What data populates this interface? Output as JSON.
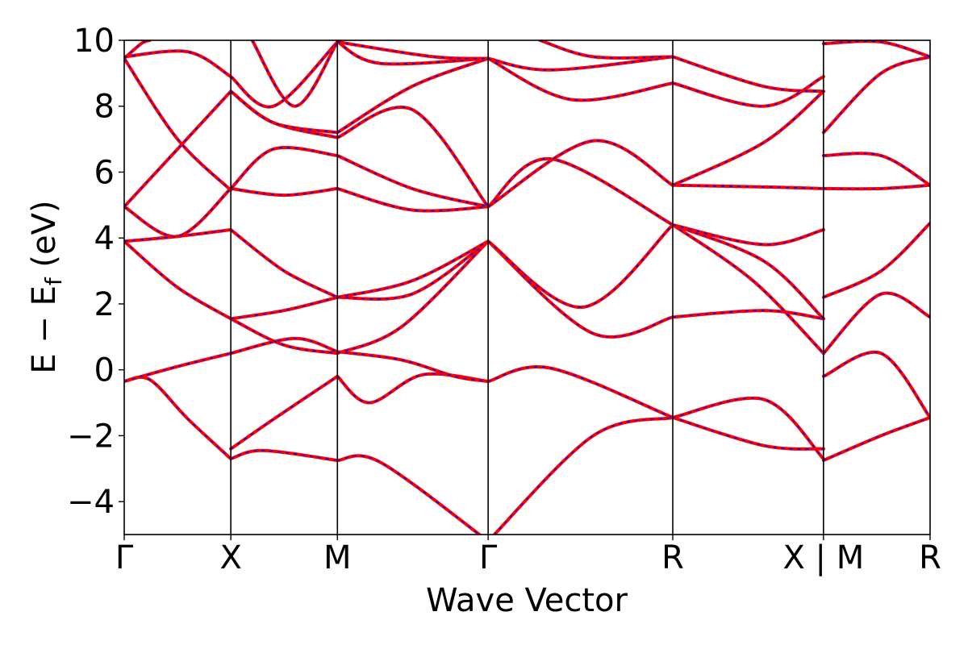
{
  "chart_data": {
    "type": "line",
    "xlabel": "Wave Vector",
    "ylabel": "E − E_f (eV)",
    "ylabel_main": "E − E",
    "ylabel_sub": "f",
    "ylabel_tail": " (eV)",
    "ylim": [
      -5,
      10
    ],
    "yticks": [
      -4,
      -2,
      0,
      2,
      4,
      6,
      8,
      10
    ],
    "yticklabels": [
      "−4",
      "−2",
      "0",
      "2",
      "4",
      "6",
      "8",
      "10"
    ],
    "kpath": [
      {
        "label": "Γ",
        "x": 0.0
      },
      {
        "label": "X",
        "x": 0.5
      },
      {
        "label": "M",
        "x": 1.0
      },
      {
        "label": "Γ",
        "x": 1.707
      },
      {
        "label": "R",
        "x": 2.573
      },
      {
        "label": "X | M",
        "x": 3.28
      },
      {
        "label": "R",
        "x": 3.78
      }
    ],
    "xlim": [
      0,
      3.78
    ],
    "colors": {
      "primary": "#ff0000",
      "secondary": "#0000ff"
    },
    "segments": [
      {
        "name": "Γ-X",
        "bands": [
          [
            [
              0,
              -5.3
            ],
            [
              0.15,
              -5.05
            ]
          ],
          [
            [
              0,
              -0.35
            ],
            [
              0.12,
              -0.3
            ],
            [
              0.3,
              -1.5
            ],
            [
              0.5,
              -2.7
            ]
          ],
          [
            [
              0,
              -0.35
            ],
            [
              0.25,
              0.1
            ],
            [
              0.5,
              0.5
            ]
          ],
          [
            [
              0,
              3.9
            ],
            [
              0.25,
              2.5
            ],
            [
              0.5,
              1.55
            ]
          ],
          [
            [
              0,
              3.9
            ],
            [
              0.25,
              4.05
            ],
            [
              0.5,
              4.25
            ]
          ],
          [
            [
              0,
              4.95
            ],
            [
              0.25,
              4.05
            ],
            [
              0.5,
              5.5
            ]
          ],
          [
            [
              0,
              4.95
            ],
            [
              0.25,
              6.7
            ],
            [
              0.5,
              8.45
            ]
          ],
          [
            [
              0,
              9.45
            ],
            [
              0.25,
              7.0
            ],
            [
              0.5,
              5.45
            ]
          ],
          [
            [
              0,
              9.5
            ],
            [
              0.3,
              9.65
            ],
            [
              0.5,
              8.9
            ]
          ],
          [
            [
              0,
              9.45
            ],
            [
              0.08,
              9.9
            ],
            [
              0.12,
              10.0
            ]
          ]
        ]
      },
      {
        "name": "X-M",
        "bands": [
          [
            [
              0.5,
              -2.7
            ],
            [
              0.65,
              -2.45
            ],
            [
              1.0,
              -2.75
            ]
          ],
          [
            [
              0.5,
              -2.4
            ],
            [
              0.7,
              -1.5
            ],
            [
              1.0,
              -0.2
            ]
          ],
          [
            [
              0.5,
              0.5
            ],
            [
              0.8,
              0.95
            ],
            [
              1.0,
              0.55
            ]
          ],
          [
            [
              0.5,
              1.55
            ],
            [
              0.75,
              0.75
            ],
            [
              1.0,
              0.5
            ]
          ],
          [
            [
              0.5,
              1.55
            ],
            [
              0.75,
              1.8
            ],
            [
              1.0,
              2.2
            ]
          ],
          [
            [
              0.5,
              4.25
            ],
            [
              0.75,
              3.0
            ],
            [
              1.0,
              2.2
            ]
          ],
          [
            [
              0.5,
              5.5
            ],
            [
              0.75,
              5.3
            ],
            [
              1.0,
              5.5
            ]
          ],
          [
            [
              0.5,
              5.5
            ],
            [
              0.7,
              6.7
            ],
            [
              1.0,
              6.5
            ]
          ],
          [
            [
              0.5,
              8.45
            ],
            [
              0.7,
              7.5
            ],
            [
              1.0,
              7.05
            ]
          ],
          [
            [
              0.5,
              8.45
            ],
            [
              0.7,
              7.5
            ],
            [
              1.0,
              7.2
            ]
          ],
          [
            [
              0.5,
              8.9
            ],
            [
              0.7,
              8.0
            ],
            [
              1.0,
              9.95
            ]
          ],
          [
            [
              0.6,
              10.0
            ],
            [
              0.8,
              8.0
            ],
            [
              1.0,
              9.95
            ]
          ]
        ]
      },
      {
        "name": "M-Γ",
        "bands": [
          [
            [
              1.0,
              -2.75
            ],
            [
              1.2,
              -2.8
            ],
            [
              1.707,
              -5.2
            ]
          ],
          [
            [
              1.0,
              -0.2
            ],
            [
              1.15,
              -1.0
            ],
            [
              1.4,
              -0.15
            ],
            [
              1.707,
              -0.35
            ]
          ],
          [
            [
              1.0,
              0.55
            ],
            [
              1.3,
              0.3
            ],
            [
              1.55,
              -0.2
            ],
            [
              1.707,
              -0.35
            ]
          ],
          [
            [
              1.0,
              0.5
            ],
            [
              1.3,
              1.3
            ],
            [
              1.707,
              3.9
            ]
          ],
          [
            [
              1.0,
              2.2
            ],
            [
              1.35,
              2.3
            ],
            [
              1.707,
              3.9
            ]
          ],
          [
            [
              1.0,
              2.2
            ],
            [
              1.35,
              2.7
            ],
            [
              1.707,
              3.9
            ]
          ],
          [
            [
              1.0,
              5.5
            ],
            [
              1.35,
              4.85
            ],
            [
              1.707,
              4.95
            ]
          ],
          [
            [
              1.0,
              6.5
            ],
            [
              1.35,
              5.5
            ],
            [
              1.707,
              4.95
            ]
          ],
          [
            [
              1.0,
              7.05
            ],
            [
              1.35,
              7.9
            ],
            [
              1.707,
              4.95
            ]
          ],
          [
            [
              1.0,
              7.2
            ],
            [
              1.35,
              8.6
            ],
            [
              1.707,
              9.45
            ]
          ],
          [
            [
              1.0,
              9.95
            ],
            [
              1.2,
              9.3
            ],
            [
              1.707,
              9.45
            ]
          ],
          [
            [
              1.0,
              9.95
            ],
            [
              1.45,
              9.5
            ],
            [
              1.707,
              9.45
            ]
          ]
        ]
      },
      {
        "name": "Γ-R",
        "bands": [
          [
            [
              1.707,
              -5.2
            ],
            [
              2.2,
              -2.0
            ],
            [
              2.573,
              -1.45
            ]
          ],
          [
            [
              1.707,
              -0.35
            ],
            [
              2.0,
              0.05
            ],
            [
              2.573,
              -1.45
            ]
          ],
          [
            [
              1.707,
              3.9
            ],
            [
              2.2,
              1.1
            ],
            [
              2.573,
              1.6
            ]
          ],
          [
            [
              1.707,
              3.9
            ],
            [
              2.15,
              1.9
            ],
            [
              2.573,
              4.4
            ]
          ],
          [
            [
              1.707,
              4.95
            ],
            [
              2.0,
              6.4
            ],
            [
              2.573,
              4.4
            ]
          ],
          [
            [
              1.707,
              4.95
            ],
            [
              2.2,
              6.95
            ],
            [
              2.573,
              5.6
            ]
          ],
          [
            [
              1.707,
              9.45
            ],
            [
              2.0,
              9.1
            ],
            [
              2.573,
              9.5
            ]
          ],
          [
            [
              1.707,
              9.45
            ],
            [
              2.1,
              8.2
            ],
            [
              2.573,
              8.7
            ]
          ],
          [
            [
              1.95,
              10.0
            ],
            [
              2.2,
              9.5
            ],
            [
              2.573,
              9.5
            ]
          ]
        ]
      },
      {
        "name": "R-X",
        "bands": [
          [
            [
              2.573,
              -1.45
            ],
            [
              3.0,
              -2.3
            ],
            [
              3.28,
              -2.4
            ]
          ],
          [
            [
              2.573,
              -1.45
            ],
            [
              3.0,
              -0.9
            ],
            [
              3.28,
              -2.7
            ]
          ],
          [
            [
              2.573,
              1.6
            ],
            [
              3.0,
              1.8
            ],
            [
              3.28,
              1.55
            ]
          ],
          [
            [
              2.573,
              4.4
            ],
            [
              2.95,
              2.7
            ],
            [
              3.28,
              0.5
            ]
          ],
          [
            [
              2.573,
              4.4
            ],
            [
              3.0,
              3.3
            ],
            [
              3.28,
              1.55
            ]
          ],
          [
            [
              2.573,
              4.4
            ],
            [
              3.0,
              3.8
            ],
            [
              3.28,
              4.25
            ]
          ],
          [
            [
              2.573,
              5.6
            ],
            [
              3.0,
              5.55
            ],
            [
              3.28,
              5.5
            ]
          ],
          [
            [
              2.573,
              5.6
            ],
            [
              3.0,
              6.9
            ],
            [
              3.28,
              8.45
            ]
          ],
          [
            [
              2.573,
              8.7
            ],
            [
              3.0,
              8.0
            ],
            [
              3.28,
              8.9
            ]
          ],
          [
            [
              2.573,
              9.5
            ],
            [
              3.0,
              8.6
            ],
            [
              3.28,
              8.45
            ]
          ]
        ]
      },
      {
        "name": "M-R",
        "bands": [
          [
            [
              3.28,
              -2.75
            ],
            [
              3.55,
              -2.0
            ],
            [
              3.78,
              -1.45
            ]
          ],
          [
            [
              3.28,
              -0.2
            ],
            [
              3.55,
              0.5
            ],
            [
              3.78,
              -1.45
            ]
          ],
          [
            [
              3.28,
              0.5
            ],
            [
              3.55,
              2.3
            ],
            [
              3.78,
              1.6
            ]
          ],
          [
            [
              3.28,
              2.2
            ],
            [
              3.55,
              3.0
            ],
            [
              3.78,
              4.45
            ]
          ],
          [
            [
              3.28,
              6.5
            ],
            [
              3.55,
              6.5
            ],
            [
              3.78,
              5.6
            ]
          ],
          [
            [
              3.28,
              5.5
            ],
            [
              3.55,
              5.5
            ],
            [
              3.78,
              5.6
            ]
          ],
          [
            [
              3.28,
              7.2
            ],
            [
              3.55,
              9.0
            ],
            [
              3.78,
              9.5
            ]
          ],
          [
            [
              3.28,
              9.9
            ],
            [
              3.55,
              9.95
            ],
            [
              3.78,
              9.5
            ]
          ]
        ]
      }
    ]
  }
}
